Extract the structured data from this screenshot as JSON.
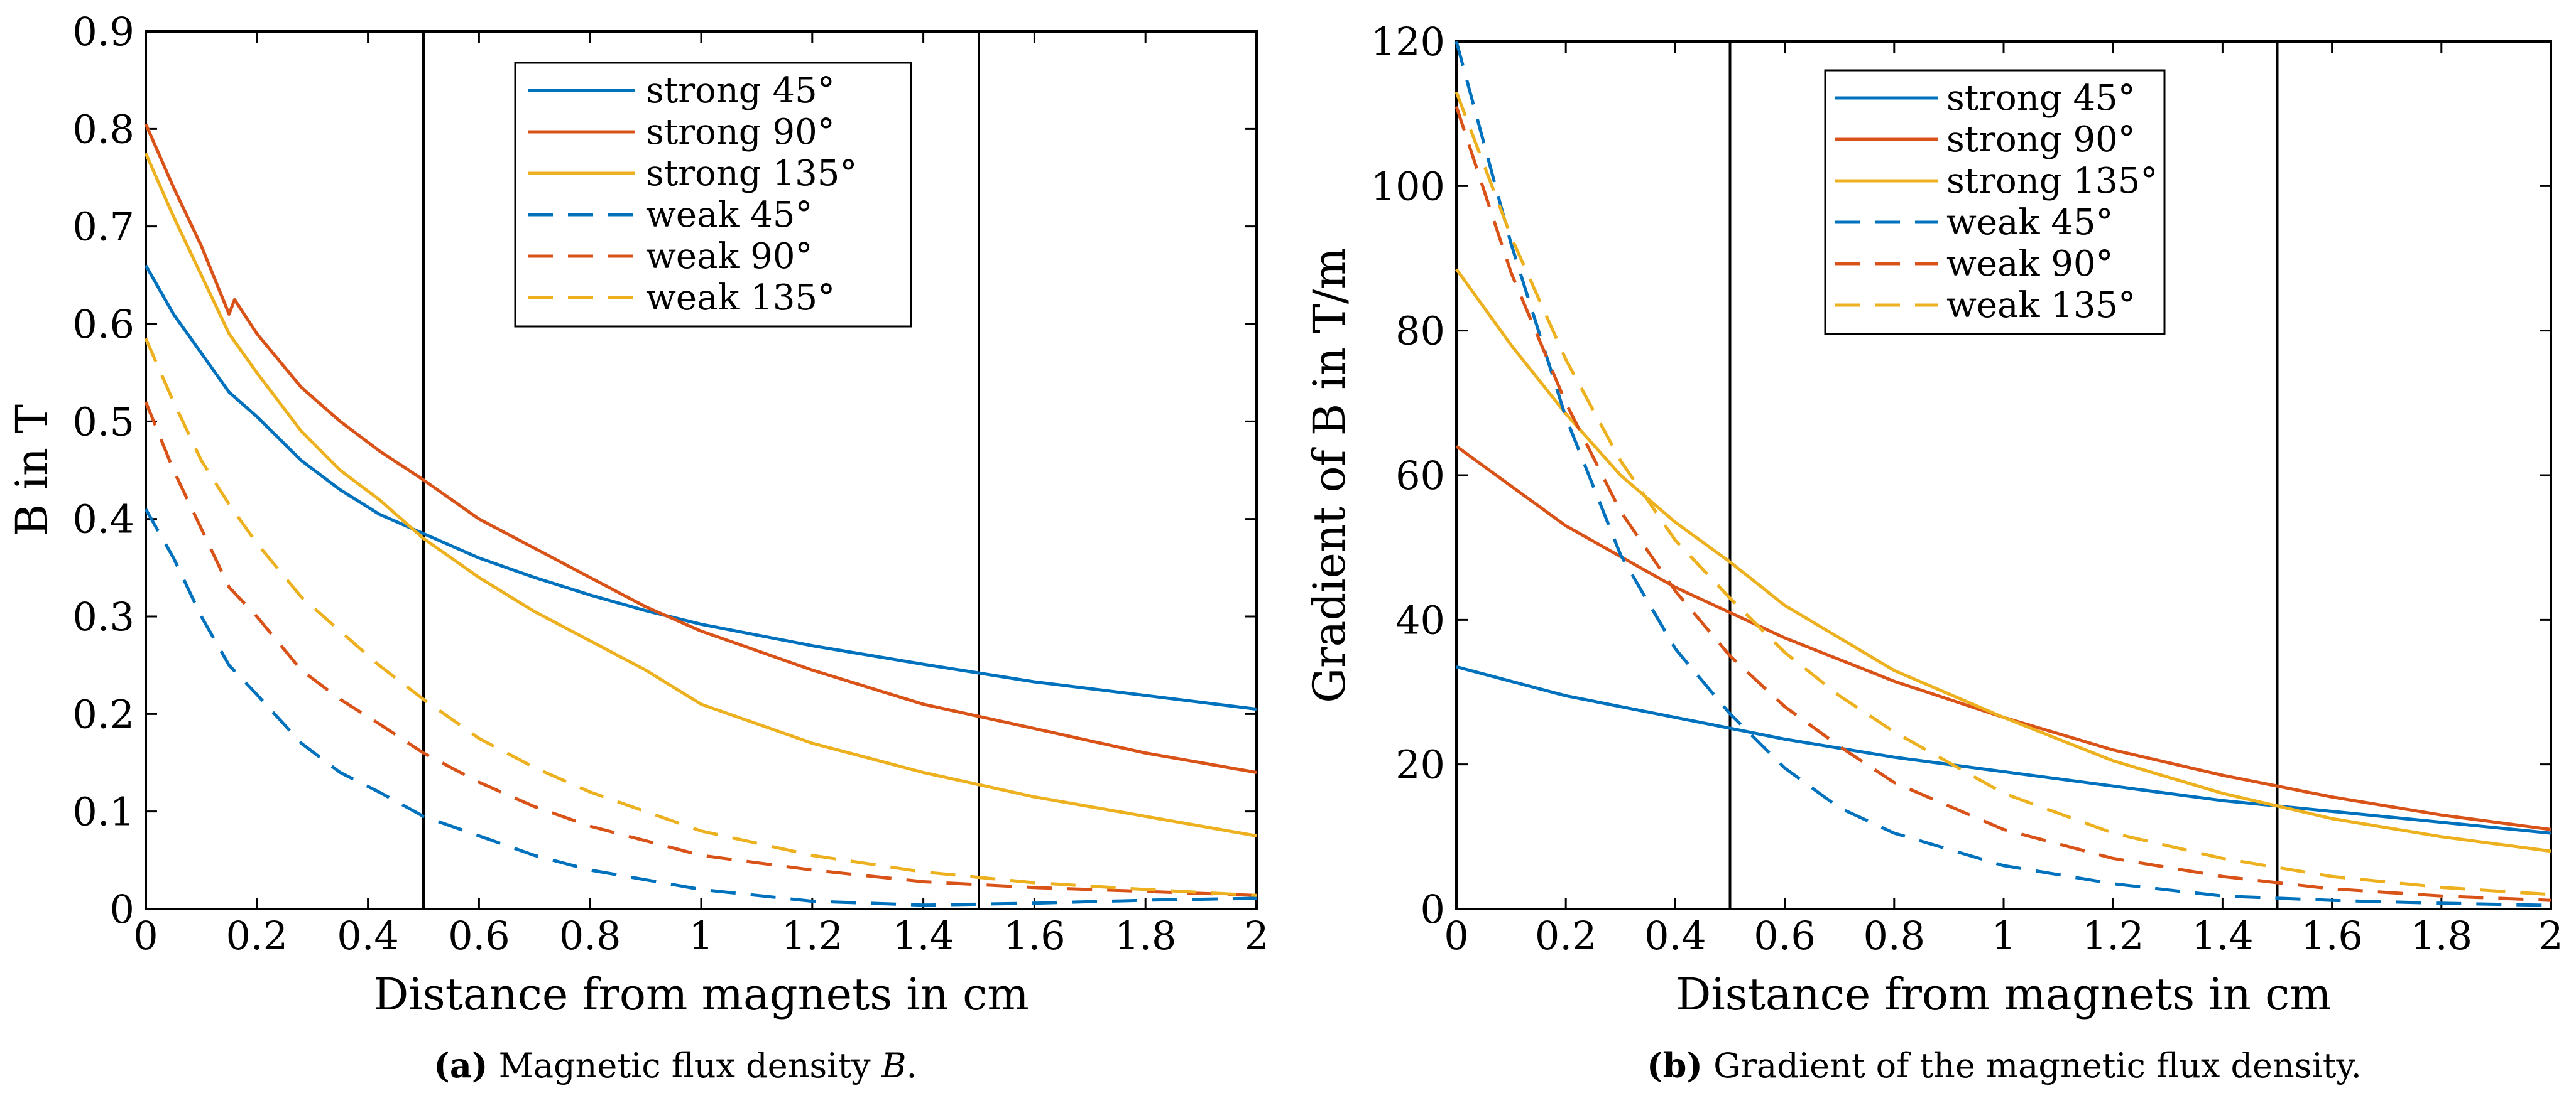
{
  "colors": {
    "blue": "#0072BD",
    "red": "#D95319",
    "yellow": "#EDB120",
    "black": "#000000"
  },
  "chart_data": [
    {
      "type": "line",
      "caption_tag": "a",
      "caption_text": " Magnetic flux density ",
      "caption_symbol": "B",
      "caption_end": ".",
      "xlabel": "Distance from magnets in cm",
      "ylabel": "B in T",
      "xlim": [
        0,
        2
      ],
      "ylim": [
        0,
        0.9
      ],
      "xticks": [
        0,
        0.2,
        0.4,
        0.6,
        0.8,
        1,
        1.2,
        1.4,
        1.6,
        1.8,
        2
      ],
      "xtick_labels": [
        "0",
        "0.2",
        "0.4",
        "0.6",
        "0.8",
        "1",
        "1.2",
        "1.4",
        "1.6",
        "1.8",
        "2"
      ],
      "yticks": [
        0,
        0.1,
        0.2,
        0.3,
        0.4,
        0.5,
        0.6,
        0.7,
        0.8,
        0.9
      ],
      "ytick_labels": [
        "0",
        "0.1",
        "0.2",
        "0.3",
        "0.4",
        "0.5",
        "0.6",
        "0.7",
        "0.8",
        "0.9"
      ],
      "vlines": [
        0.5,
        1.5
      ],
      "legend_position": "top-center",
      "series": [
        {
          "name": "strong 45°",
          "color": "blue",
          "dash": false,
          "x": [
            0,
            0.05,
            0.1,
            0.15,
            0.2,
            0.28,
            0.35,
            0.42,
            0.5,
            0.6,
            0.7,
            0.8,
            0.9,
            1.0,
            1.2,
            1.4,
            1.6,
            1.8,
            2.0
          ],
          "y": [
            0.66,
            0.61,
            0.57,
            0.53,
            0.505,
            0.46,
            0.43,
            0.405,
            0.385,
            0.36,
            0.34,
            0.322,
            0.306,
            0.292,
            0.27,
            0.251,
            0.233,
            0.219,
            0.205
          ]
        },
        {
          "name": "strong 90°",
          "color": "red",
          "dash": false,
          "x": [
            0,
            0.05,
            0.1,
            0.15,
            0.16,
            0.2,
            0.28,
            0.35,
            0.42,
            0.5,
            0.6,
            0.7,
            0.8,
            0.9,
            1.0,
            1.2,
            1.4,
            1.6,
            1.8,
            2.0
          ],
          "y": [
            0.805,
            0.74,
            0.68,
            0.61,
            0.625,
            0.59,
            0.535,
            0.5,
            0.47,
            0.44,
            0.4,
            0.37,
            0.34,
            0.31,
            0.285,
            0.245,
            0.21,
            0.185,
            0.16,
            0.14
          ]
        },
        {
          "name": "strong 135°",
          "color": "yellow",
          "dash": false,
          "x": [
            0,
            0.05,
            0.1,
            0.15,
            0.2,
            0.28,
            0.35,
            0.42,
            0.5,
            0.6,
            0.7,
            0.8,
            0.9,
            1.0,
            1.2,
            1.4,
            1.6,
            1.8,
            2.0
          ],
          "y": [
            0.775,
            0.71,
            0.65,
            0.59,
            0.55,
            0.49,
            0.45,
            0.42,
            0.38,
            0.34,
            0.305,
            0.275,
            0.245,
            0.21,
            0.17,
            0.14,
            0.115,
            0.095,
            0.075
          ]
        },
        {
          "name": "weak 45°",
          "color": "blue",
          "dash": true,
          "x": [
            0,
            0.05,
            0.1,
            0.15,
            0.2,
            0.28,
            0.35,
            0.42,
            0.5,
            0.6,
            0.7,
            0.8,
            0.9,
            1.0,
            1.2,
            1.4,
            1.6,
            1.8,
            2.0
          ],
          "y": [
            0.41,
            0.36,
            0.3,
            0.25,
            0.22,
            0.17,
            0.14,
            0.12,
            0.095,
            0.075,
            0.055,
            0.04,
            0.03,
            0.02,
            0.008,
            0.004,
            0.006,
            0.009,
            0.011
          ]
        },
        {
          "name": "weak 90°",
          "color": "red",
          "dash": true,
          "x": [
            0,
            0.05,
            0.1,
            0.15,
            0.2,
            0.28,
            0.35,
            0.42,
            0.5,
            0.6,
            0.7,
            0.8,
            0.9,
            1.0,
            1.2,
            1.4,
            1.6,
            1.8,
            2.0
          ],
          "y": [
            0.52,
            0.45,
            0.39,
            0.33,
            0.3,
            0.245,
            0.215,
            0.19,
            0.16,
            0.13,
            0.105,
            0.085,
            0.07,
            0.055,
            0.04,
            0.028,
            0.022,
            0.018,
            0.014
          ]
        },
        {
          "name": "weak 135°",
          "color": "yellow",
          "dash": true,
          "x": [
            0,
            0.05,
            0.1,
            0.15,
            0.2,
            0.28,
            0.35,
            0.42,
            0.5,
            0.6,
            0.7,
            0.8,
            0.9,
            1.0,
            1.2,
            1.4,
            1.6,
            1.8,
            2.0
          ],
          "y": [
            0.585,
            0.52,
            0.46,
            0.415,
            0.375,
            0.32,
            0.285,
            0.25,
            0.215,
            0.175,
            0.145,
            0.12,
            0.1,
            0.08,
            0.055,
            0.038,
            0.027,
            0.02,
            0.014
          ]
        }
      ]
    },
    {
      "type": "line",
      "caption_tag": "b",
      "caption_text": " Gradient of the magnetic flux density.",
      "caption_symbol": "",
      "caption_end": "",
      "xlabel": "Distance from magnets in cm",
      "ylabel": "Gradient of B in T/m",
      "xlim": [
        0,
        2
      ],
      "ylim": [
        0,
        120
      ],
      "xticks": [
        0,
        0.2,
        0.4,
        0.6,
        0.8,
        1,
        1.2,
        1.4,
        1.6,
        1.8,
        2
      ],
      "xtick_labels": [
        "0",
        "0.2",
        "0.4",
        "0.6",
        "0.8",
        "1",
        "1.2",
        "1.4",
        "1.6",
        "1.8",
        "2"
      ],
      "yticks": [
        0,
        20,
        40,
        60,
        80,
        100,
        120
      ],
      "ytick_labels": [
        "0",
        "20",
        "40",
        "60",
        "80",
        "100",
        "120"
      ],
      "vlines": [
        0.5,
        1.5
      ],
      "legend_position": "top-center",
      "series": [
        {
          "name": "strong 45°",
          "color": "blue",
          "dash": false,
          "x": [
            0,
            0.2,
            0.4,
            0.6,
            0.8,
            1.0,
            1.2,
            1.4,
            1.6,
            1.8,
            2.0
          ],
          "y": [
            33.5,
            29.5,
            26.5,
            23.5,
            21,
            19,
            17,
            15,
            13.5,
            12,
            10.5
          ]
        },
        {
          "name": "strong 90°",
          "color": "red",
          "dash": false,
          "x": [
            0,
            0.2,
            0.4,
            0.6,
            0.8,
            1.0,
            1.2,
            1.4,
            1.6,
            1.8,
            2.0
          ],
          "y": [
            64,
            53,
            44.5,
            37.5,
            31.5,
            26.5,
            22,
            18.5,
            15.5,
            13,
            11
          ]
        },
        {
          "name": "strong 135°",
          "color": "yellow",
          "dash": false,
          "x": [
            0,
            0.1,
            0.2,
            0.3,
            0.4,
            0.5,
            0.6,
            0.8,
            1.0,
            1.2,
            1.4,
            1.6,
            1.8,
            2.0
          ],
          "y": [
            88.5,
            78,
            68.5,
            60,
            53.5,
            48,
            42,
            33,
            26.5,
            20.5,
            16,
            12.5,
            10,
            8
          ]
        },
        {
          "name": "weak 45°",
          "color": "blue",
          "dash": true,
          "x": [
            0,
            0.1,
            0.2,
            0.3,
            0.4,
            0.5,
            0.6,
            0.7,
            0.8,
            1.0,
            1.2,
            1.4,
            1.6,
            1.8,
            2.0
          ],
          "y": [
            120,
            92,
            68,
            49,
            36,
            27,
            19.5,
            14,
            10.5,
            6,
            3.5,
            1.8,
            1.2,
            0.8,
            0.5
          ]
        },
        {
          "name": "weak 90°",
          "color": "red",
          "dash": true,
          "x": [
            0,
            0.1,
            0.2,
            0.3,
            0.4,
            0.5,
            0.6,
            0.7,
            0.8,
            1.0,
            1.2,
            1.4,
            1.6,
            1.8,
            2.0
          ],
          "y": [
            111,
            88,
            70,
            55,
            44,
            35,
            28,
            22.5,
            17.5,
            11,
            7,
            4.5,
            2.8,
            1.8,
            1.2
          ]
        },
        {
          "name": "weak 135°",
          "color": "yellow",
          "dash": true,
          "x": [
            0,
            0.1,
            0.2,
            0.3,
            0.4,
            0.5,
            0.6,
            0.7,
            0.8,
            1.0,
            1.2,
            1.4,
            1.6,
            1.8,
            2.0
          ],
          "y": [
            113,
            93,
            76,
            62,
            51,
            43,
            35.5,
            29.5,
            24.5,
            16,
            10.5,
            7,
            4.5,
            3,
            2
          ]
        }
      ]
    }
  ]
}
